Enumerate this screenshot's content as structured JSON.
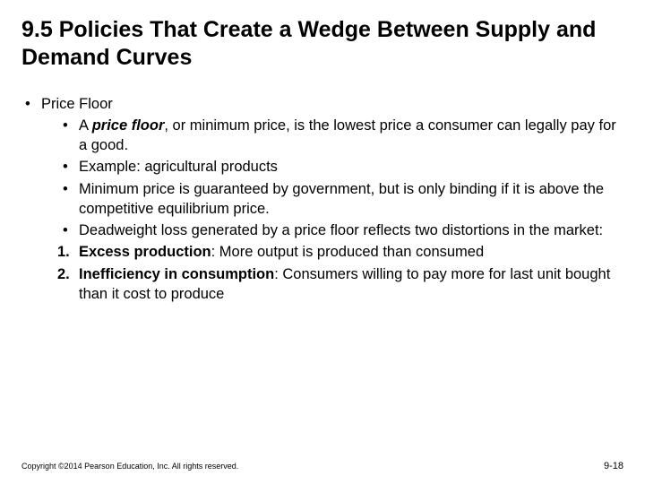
{
  "title": "9.5  Policies That Create a Wedge Between Supply and Demand Curves",
  "bullets": {
    "l1_1": "Price Floor",
    "l2_1_prefix": "A ",
    "l2_1_term": "price floor",
    "l2_1_rest": ", or minimum price, is the lowest price a consumer can legally pay for a good.",
    "l2_2": "Example:  agricultural products",
    "l2_3": "Minimum price is guaranteed by government, but is only binding if it is above the competitive equilibrium price.",
    "l2_4": "Deadweight loss generated by a price floor reflects two distortions in the market:",
    "n1_label": "1.",
    "n1_term": "Excess production",
    "n1_rest": ":  More output is produced than consumed",
    "n2_label": "2.",
    "n2_term": "Inefficiency in consumption",
    "n2_rest": ":  Consumers willing to pay more for last unit bought than it cost to produce"
  },
  "footer": {
    "copyright": "Copyright ©2014 Pearson Education, Inc. All rights reserved.",
    "pagenum": "9-18"
  },
  "style": {
    "background_color": "#ffffff",
    "text_color": "#000000",
    "title_fontsize": 25,
    "body_fontsize": 16.5,
    "footer_fontsize": 9,
    "pagenum_fontsize": 11
  }
}
